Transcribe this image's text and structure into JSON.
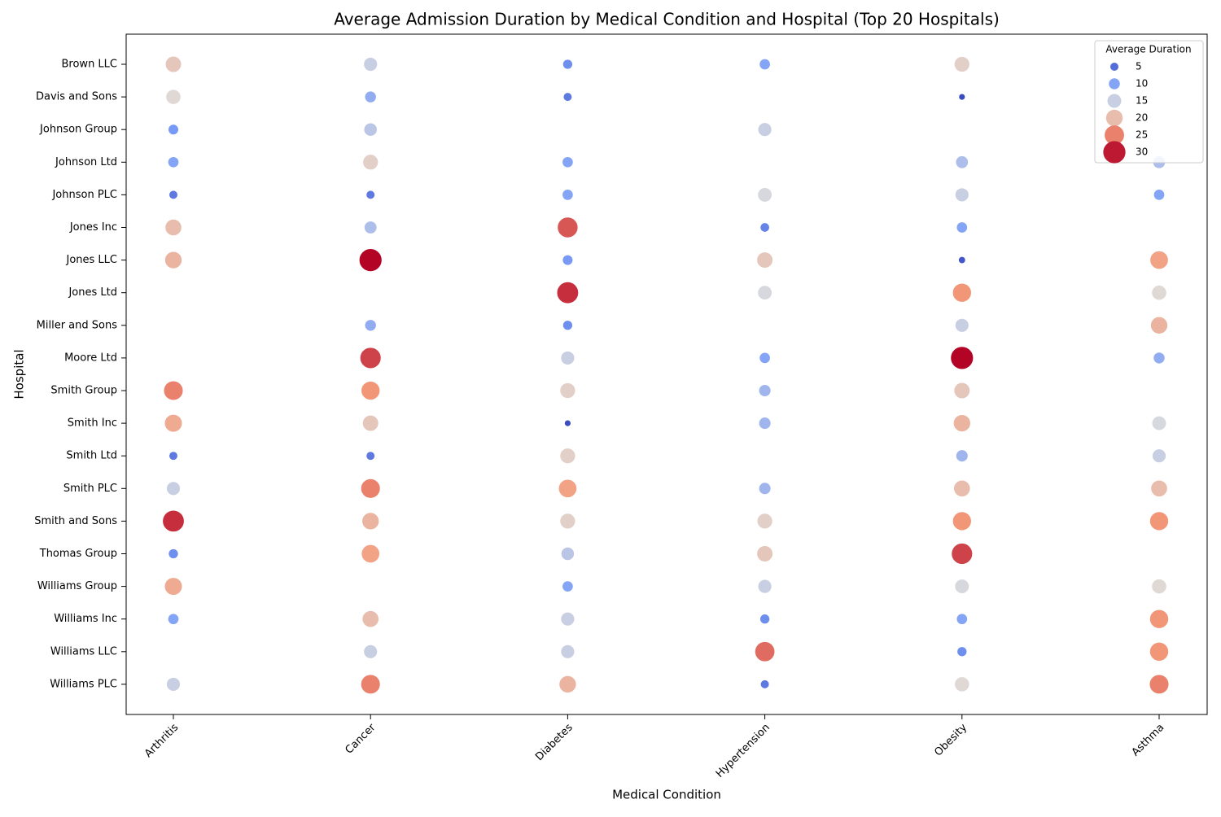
{
  "chart_data": {
    "type": "bubble-matrix",
    "title": "Average Admission Duration by Medical Condition and Hospital (Top 20 Hospitals)",
    "x_label": "Medical Condition",
    "y_label": "Hospital",
    "conditions": [
      "Arthritis",
      "Cancer",
      "Diabetes",
      "Hypertension",
      "Obesity",
      "Asthma"
    ],
    "hospitals": [
      "Brown LLC",
      "Davis and Sons",
      "Johnson Group",
      "Johnson Ltd",
      "Johnson PLC",
      "Jones Inc",
      "Jones LLC",
      "Jones Ltd",
      "Miller and Sons",
      "Moore Ltd",
      "Smith Group",
      "Smith Inc",
      "Smith Ltd",
      "Smith PLC",
      "Smith and Sons",
      "Thomas Group",
      "Williams Group",
      "Williams Inc",
      "Williams LLC",
      "Williams PLC"
    ],
    "values": [
      [
        19,
        15,
        8,
        10,
        18,
        null
      ],
      [
        17,
        11,
        6,
        null,
        2,
        null
      ],
      [
        9,
        14,
        null,
        15,
        null,
        null
      ],
      [
        10,
        18,
        10,
        null,
        13,
        13
      ],
      [
        6,
        6,
        10,
        16,
        15,
        10
      ],
      [
        20,
        13,
        27,
        7,
        10,
        null
      ],
      [
        21,
        31,
        9,
        19,
        3,
        23
      ],
      [
        null,
        null,
        29,
        16,
        24,
        17
      ],
      [
        null,
        11,
        8,
        null,
        15,
        21
      ],
      [
        null,
        28,
        15,
        10,
        31,
        11
      ],
      [
        25,
        24,
        18,
        12,
        19,
        null
      ],
      [
        22,
        19,
        2,
        12,
        21,
        16
      ],
      [
        6,
        6,
        18,
        null,
        12,
        15
      ],
      [
        15,
        25,
        23,
        12,
        20,
        20
      ],
      [
        29,
        21,
        18,
        18,
        24,
        24
      ],
      [
        8,
        23,
        14,
        19,
        28,
        null
      ],
      [
        22,
        null,
        10,
        15,
        16,
        17
      ],
      [
        10,
        20,
        15,
        8,
        10,
        24
      ],
      [
        null,
        15,
        15,
        26,
        8,
        24
      ],
      [
        15,
        25,
        21,
        6,
        17,
        25
      ]
    ],
    "colormap": "coolwarm",
    "vlim": [
      2,
      31
    ],
    "legend_title": "Average Duration",
    "legend_values": [
      5,
      10,
      15,
      20,
      25,
      30
    ],
    "legend": "upper right"
  }
}
